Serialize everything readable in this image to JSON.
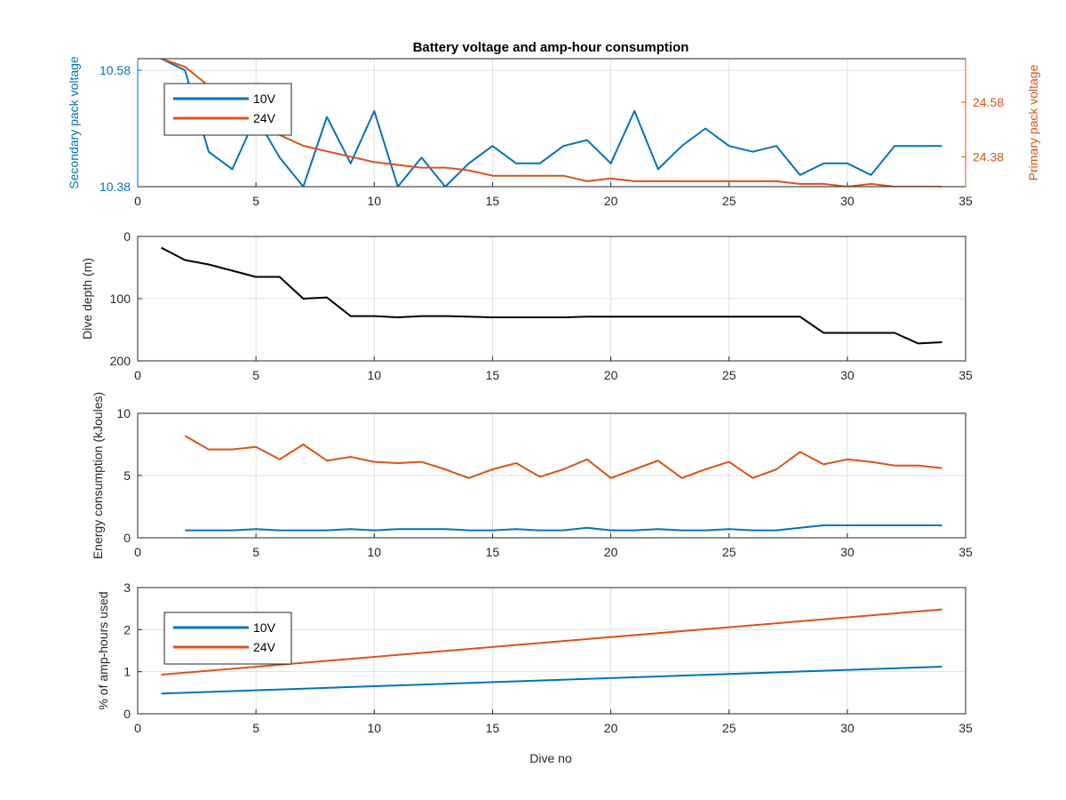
{
  "figure": {
    "title": "Battery voltage and amp-hour consumption",
    "xlabel": "Dive no"
  },
  "colors": {
    "blue": "#0072BD",
    "orange": "#D95319",
    "black": "#000000",
    "axis": "#262626",
    "grid": "#dfdfdf"
  },
  "chart_data": [
    {
      "type": "line",
      "title": "Battery voltage and amp-hour consumption",
      "xlabel": "",
      "ylabel": "Secondary pack voltage",
      "ylabel_right": "Primary pack voltage",
      "xlim": [
        0,
        35
      ],
      "xticks": [
        0,
        5,
        10,
        15,
        20,
        25,
        30,
        35
      ],
      "ylim": [
        10.38,
        10.6
      ],
      "yticks": [
        "10.38",
        "10.58"
      ],
      "ylim_right": [
        24.27,
        24.74
      ],
      "yticks_right": [
        "24.38",
        "24.58"
      ],
      "grid": true,
      "legend": {
        "placement": "top-left",
        "entries": [
          "10V",
          "24V"
        ]
      },
      "series": [
        {
          "name": "10V",
          "axis": "left",
          "x": [
            1,
            2,
            3,
            4,
            5,
            6,
            7,
            8,
            9,
            10,
            11,
            12,
            13,
            14,
            15,
            16,
            17,
            18,
            19,
            20,
            21,
            22,
            23,
            24,
            25,
            26,
            27,
            28,
            29,
            30,
            31,
            32,
            33,
            34
          ],
          "y": [
            10.6,
            10.58,
            10.44,
            10.41,
            10.5,
            10.43,
            10.38,
            10.5,
            10.42,
            10.51,
            10.38,
            10.43,
            10.38,
            10.42,
            10.45,
            10.42,
            10.42,
            10.45,
            10.46,
            10.42,
            10.51,
            10.41,
            10.45,
            10.48,
            10.45,
            10.44,
            10.45,
            10.4,
            10.42,
            10.42,
            10.4,
            10.45,
            10.45,
            10.45
          ]
        },
        {
          "name": "24V",
          "axis": "right",
          "x": [
            1,
            2,
            3,
            4,
            5,
            6,
            7,
            8,
            9,
            10,
            11,
            12,
            13,
            14,
            15,
            16,
            17,
            18,
            19,
            20,
            21,
            22,
            23,
            24,
            25,
            26,
            27,
            28,
            29,
            30,
            31,
            32,
            33,
            34
          ],
          "y": [
            24.74,
            24.71,
            24.64,
            24.56,
            24.5,
            24.46,
            24.42,
            24.4,
            24.38,
            24.36,
            24.35,
            24.34,
            24.34,
            24.33,
            24.31,
            24.31,
            24.31,
            24.31,
            24.29,
            24.3,
            24.29,
            24.29,
            24.29,
            24.29,
            24.29,
            24.29,
            24.29,
            24.28,
            24.28,
            24.27,
            24.28,
            24.27,
            24.27,
            24.27
          ]
        }
      ]
    },
    {
      "type": "line",
      "xlabel": "",
      "ylabel": "Dive depth (m)",
      "xlim": [
        0,
        35
      ],
      "xticks": [
        0,
        5,
        10,
        15,
        20,
        25,
        30,
        35
      ],
      "ylim": [
        0,
        200
      ],
      "yreverse": true,
      "yticks": [
        "0",
        "100",
        "200"
      ],
      "ytick_labels": [
        "0",
        "100",
        "200"
      ],
      "grid": true,
      "series": [
        {
          "name": "",
          "x": [
            1,
            2,
            3,
            4,
            5,
            6,
            7,
            8,
            9,
            10,
            11,
            12,
            13,
            14,
            15,
            16,
            17,
            18,
            19,
            20,
            21,
            22,
            23,
            24,
            25,
            26,
            27,
            28,
            29,
            30,
            31,
            32,
            33,
            34
          ],
          "y": [
            18,
            38,
            45,
            55,
            65,
            65,
            100,
            98,
            128,
            128,
            130,
            128,
            128,
            129,
            130,
            130,
            130,
            130,
            129,
            129,
            129,
            129,
            129,
            129,
            129,
            129,
            129,
            129,
            155,
            155,
            155,
            155,
            172,
            170
          ]
        }
      ]
    },
    {
      "type": "line",
      "xlabel": "",
      "ylabel": "Energy consumption (kJoules)",
      "xlim": [
        0,
        35
      ],
      "xticks": [
        0,
        5,
        10,
        15,
        20,
        25,
        30,
        35
      ],
      "ylim": [
        0,
        10
      ],
      "yticks": [
        "0",
        "5",
        "10"
      ],
      "grid": true,
      "series": [
        {
          "name": "10V",
          "x": [
            2,
            3,
            4,
            5,
            6,
            7,
            8,
            9,
            10,
            11,
            12,
            13,
            14,
            15,
            16,
            17,
            18,
            19,
            20,
            21,
            22,
            23,
            24,
            25,
            26,
            27,
            28,
            29,
            30,
            31,
            32,
            33,
            34
          ],
          "y": [
            0.6,
            0.6,
            0.6,
            0.7,
            0.6,
            0.6,
            0.6,
            0.7,
            0.6,
            0.7,
            0.7,
            0.7,
            0.6,
            0.6,
            0.7,
            0.6,
            0.6,
            0.8,
            0.6,
            0.6,
            0.7,
            0.6,
            0.6,
            0.7,
            0.6,
            0.6,
            0.8,
            1.0,
            1.0,
            1.0,
            1.0,
            1.0,
            1.0
          ]
        },
        {
          "name": "24V",
          "x": [
            2,
            3,
            4,
            5,
            6,
            7,
            8,
            9,
            10,
            11,
            12,
            13,
            14,
            15,
            16,
            17,
            18,
            19,
            20,
            21,
            22,
            23,
            24,
            25,
            26,
            27,
            28,
            29,
            30,
            31,
            32,
            33,
            34
          ],
          "y": [
            8.2,
            7.1,
            7.1,
            7.3,
            6.3,
            7.5,
            6.2,
            6.5,
            6.1,
            6.0,
            6.1,
            5.5,
            4.8,
            5.5,
            6.0,
            4.9,
            5.5,
            6.3,
            4.8,
            5.5,
            6.2,
            4.8,
            5.5,
            6.1,
            4.8,
            5.5,
            6.9,
            5.9,
            6.3,
            6.1,
            5.8,
            5.8,
            5.6
          ]
        }
      ]
    },
    {
      "type": "line",
      "xlabel": "Dive no",
      "ylabel": "% of amp-hours used",
      "xlim": [
        0,
        35
      ],
      "xticks": [
        0,
        5,
        10,
        15,
        20,
        25,
        30,
        35
      ],
      "ylim": [
        0,
        3
      ],
      "yticks": [
        "0",
        "1",
        "2",
        "3"
      ],
      "grid": true,
      "legend": {
        "placement": "top-left",
        "entries": [
          "10V",
          "24V"
        ]
      },
      "series": [
        {
          "name": "10V",
          "x": [
            1,
            34
          ],
          "y": [
            0.48,
            1.12
          ]
        },
        {
          "name": "24V",
          "x": [
            1,
            34
          ],
          "y": [
            0.93,
            2.48
          ]
        }
      ]
    }
  ]
}
